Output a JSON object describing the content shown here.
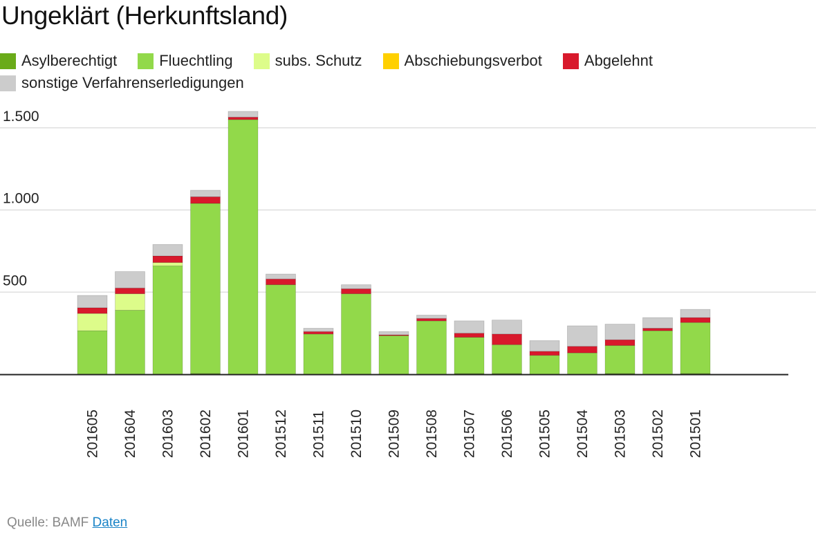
{
  "source_label": "Quelle: BAMF",
  "source_link": "Daten",
  "chart_data": {
    "type": "bar",
    "stacked": true,
    "title": "Ungeklärt (Herkunftsland)",
    "xlabel": "",
    "ylabel": "",
    "ylim": [
      0,
      1650
    ],
    "yticks": [
      500,
      1000,
      1500
    ],
    "ytick_labels": [
      "500",
      "1.000",
      "1.500"
    ],
    "categories": [
      "201605",
      "201604",
      "201603",
      "201602",
      "201601",
      "201512",
      "201511",
      "201510",
      "201509",
      "201508",
      "201507",
      "201506",
      "201505",
      "201504",
      "201503",
      "201502",
      "201501"
    ],
    "series": [
      {
        "name": "Asylberechtigt",
        "color": "#6aab19",
        "values": [
          0,
          0,
          0,
          5,
          0,
          0,
          0,
          0,
          0,
          0,
          5,
          5,
          0,
          0,
          5,
          0,
          5
        ]
      },
      {
        "name": "Fluechtling",
        "color": "#92d94a",
        "values": [
          265,
          390,
          660,
          1035,
          1550,
          545,
          245,
          490,
          235,
          325,
          220,
          175,
          115,
          130,
          170,
          265,
          310
        ]
      },
      {
        "name": "subs. Schutz",
        "color": "#ddfc8a",
        "values": [
          105,
          100,
          20,
          0,
          0,
          0,
          0,
          0,
          0,
          0,
          0,
          0,
          0,
          0,
          0,
          0,
          0
        ]
      },
      {
        "name": "Abschiebungsverbot",
        "color": "#ffd000",
        "values": [
          0,
          0,
          0,
          0,
          0,
          0,
          0,
          0,
          0,
          0,
          0,
          0,
          0,
          0,
          0,
          0,
          0
        ]
      },
      {
        "name": "Abgelehnt",
        "color": "#d8192c",
        "values": [
          35,
          35,
          40,
          40,
          15,
          35,
          15,
          30,
          5,
          15,
          25,
          65,
          25,
          40,
          35,
          15,
          30
        ]
      },
      {
        "name": "sonstige Verfahrenserledigungen",
        "color": "#cccccc",
        "values": [
          75,
          100,
          70,
          40,
          35,
          30,
          20,
          25,
          20,
          20,
          75,
          85,
          65,
          125,
          95,
          65,
          50
        ]
      }
    ]
  }
}
